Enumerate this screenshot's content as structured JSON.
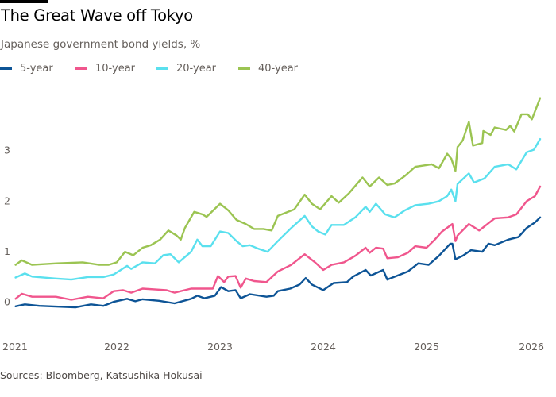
{
  "title": "The Great Wave off Tokyo",
  "subtitle": "Japanese government bond yields, %",
  "source": "Sources: Bloomberg, Katsushika Hokusai",
  "chart_data": {
    "type": "line",
    "title": "The Great Wave off Tokyo",
    "ylabel": "",
    "xlabel": "",
    "xlim": [
      2021,
      2026
    ],
    "ylim": [
      -0.8,
      4.4
    ],
    "grid": false,
    "legend": "top-left",
    "x_ticks": [
      "2021",
      "2022",
      "2023",
      "2024",
      "2025",
      "2026"
    ],
    "y_ticks": [
      "0",
      "1",
      "2",
      "3"
    ],
    "series": [
      {
        "name": "5-year",
        "color": "#0d5496",
        "points": [
          [
            2021.02,
            -0.09
          ],
          [
            2021.11,
            -0.05
          ],
          [
            2021.25,
            -0.08
          ],
          [
            2021.48,
            -0.1
          ],
          [
            2021.6,
            -0.11
          ],
          [
            2021.75,
            -0.05
          ],
          [
            2021.87,
            -0.08
          ],
          [
            2021.97,
            0.0
          ],
          [
            2022.1,
            0.06
          ],
          [
            2022.18,
            0.01
          ],
          [
            2022.25,
            0.05
          ],
          [
            2022.41,
            0.02
          ],
          [
            2022.56,
            -0.03
          ],
          [
            2022.72,
            0.06
          ],
          [
            2022.78,
            0.12
          ],
          [
            2022.85,
            0.07
          ],
          [
            2022.95,
            0.12
          ],
          [
            2023.01,
            0.29
          ],
          [
            2023.08,
            0.21
          ],
          [
            2023.15,
            0.23
          ],
          [
            2023.2,
            0.07
          ],
          [
            2023.29,
            0.15
          ],
          [
            2023.45,
            0.1
          ],
          [
            2023.52,
            0.12
          ],
          [
            2023.56,
            0.21
          ],
          [
            2023.68,
            0.26
          ],
          [
            2023.77,
            0.34
          ],
          [
            2023.83,
            0.47
          ],
          [
            2023.89,
            0.34
          ],
          [
            2024.0,
            0.23
          ],
          [
            2024.1,
            0.37
          ],
          [
            2024.23,
            0.39
          ],
          [
            2024.29,
            0.5
          ],
          [
            2024.41,
            0.63
          ],
          [
            2024.46,
            0.52
          ],
          [
            2024.58,
            0.63
          ],
          [
            2024.62,
            0.44
          ],
          [
            2024.72,
            0.52
          ],
          [
            2024.82,
            0.6
          ],
          [
            2024.92,
            0.76
          ],
          [
            2025.02,
            0.73
          ],
          [
            2025.12,
            0.91
          ],
          [
            2025.23,
            1.15
          ],
          [
            2025.25,
            1.15
          ],
          [
            2025.28,
            0.84
          ],
          [
            2025.35,
            0.91
          ],
          [
            2025.43,
            1.02
          ],
          [
            2025.54,
            0.99
          ],
          [
            2025.6,
            1.15
          ],
          [
            2025.66,
            1.12
          ],
          [
            2025.79,
            1.23
          ],
          [
            2025.89,
            1.28
          ],
          [
            2025.97,
            1.46
          ],
          [
            2026.05,
            1.57
          ],
          [
            2026.1,
            1.67
          ]
        ]
      },
      {
        "name": "10-year",
        "color": "#f0568d",
        "points": [
          [
            2021.02,
            0.06
          ],
          [
            2021.08,
            0.16
          ],
          [
            2021.18,
            0.1
          ],
          [
            2021.41,
            0.1
          ],
          [
            2021.56,
            0.04
          ],
          [
            2021.72,
            0.1
          ],
          [
            2021.87,
            0.07
          ],
          [
            2021.97,
            0.21
          ],
          [
            2022.06,
            0.23
          ],
          [
            2022.14,
            0.18
          ],
          [
            2022.25,
            0.26
          ],
          [
            2022.48,
            0.23
          ],
          [
            2022.56,
            0.18
          ],
          [
            2022.72,
            0.26
          ],
          [
            2022.93,
            0.26
          ],
          [
            2022.98,
            0.51
          ],
          [
            2023.04,
            0.39
          ],
          [
            2023.08,
            0.5
          ],
          [
            2023.15,
            0.51
          ],
          [
            2023.2,
            0.28
          ],
          [
            2023.25,
            0.46
          ],
          [
            2023.33,
            0.41
          ],
          [
            2023.45,
            0.39
          ],
          [
            2023.56,
            0.6
          ],
          [
            2023.69,
            0.73
          ],
          [
            2023.82,
            0.94
          ],
          [
            2023.92,
            0.78
          ],
          [
            2024.0,
            0.63
          ],
          [
            2024.08,
            0.73
          ],
          [
            2024.2,
            0.78
          ],
          [
            2024.31,
            0.91
          ],
          [
            2024.41,
            1.07
          ],
          [
            2024.45,
            0.97
          ],
          [
            2024.51,
            1.07
          ],
          [
            2024.58,
            1.05
          ],
          [
            2024.62,
            0.86
          ],
          [
            2024.72,
            0.88
          ],
          [
            2024.82,
            0.97
          ],
          [
            2024.89,
            1.1
          ],
          [
            2025.0,
            1.07
          ],
          [
            2025.08,
            1.23
          ],
          [
            2025.15,
            1.39
          ],
          [
            2025.25,
            1.54
          ],
          [
            2025.28,
            1.2
          ],
          [
            2025.3,
            1.31
          ],
          [
            2025.41,
            1.54
          ],
          [
            2025.51,
            1.41
          ],
          [
            2025.66,
            1.65
          ],
          [
            2025.79,
            1.67
          ],
          [
            2025.87,
            1.73
          ],
          [
            2025.97,
            1.99
          ],
          [
            2026.05,
            2.09
          ],
          [
            2026.1,
            2.28
          ]
        ]
      },
      {
        "name": "20-year",
        "color": "#5ae0ee",
        "points": [
          [
            2021.02,
            0.48
          ],
          [
            2021.11,
            0.56
          ],
          [
            2021.18,
            0.5
          ],
          [
            2021.41,
            0.46
          ],
          [
            2021.56,
            0.44
          ],
          [
            2021.72,
            0.49
          ],
          [
            2021.87,
            0.49
          ],
          [
            2021.97,
            0.54
          ],
          [
            2022.1,
            0.71
          ],
          [
            2022.14,
            0.65
          ],
          [
            2022.25,
            0.78
          ],
          [
            2022.37,
            0.76
          ],
          [
            2022.45,
            0.92
          ],
          [
            2022.52,
            0.94
          ],
          [
            2022.6,
            0.78
          ],
          [
            2022.72,
            0.99
          ],
          [
            2022.78,
            1.23
          ],
          [
            2022.83,
            1.1
          ],
          [
            2022.91,
            1.1
          ],
          [
            2023.0,
            1.39
          ],
          [
            2023.08,
            1.36
          ],
          [
            2023.16,
            1.2
          ],
          [
            2023.22,
            1.1
          ],
          [
            2023.29,
            1.12
          ],
          [
            2023.37,
            1.05
          ],
          [
            2023.46,
            0.99
          ],
          [
            2023.56,
            1.2
          ],
          [
            2023.69,
            1.46
          ],
          [
            2023.82,
            1.7
          ],
          [
            2023.89,
            1.49
          ],
          [
            2023.95,
            1.39
          ],
          [
            2024.02,
            1.33
          ],
          [
            2024.08,
            1.52
          ],
          [
            2024.2,
            1.52
          ],
          [
            2024.31,
            1.67
          ],
          [
            2024.41,
            1.88
          ],
          [
            2024.45,
            1.78
          ],
          [
            2024.51,
            1.94
          ],
          [
            2024.6,
            1.73
          ],
          [
            2024.69,
            1.67
          ],
          [
            2024.79,
            1.81
          ],
          [
            2024.89,
            1.91
          ],
          [
            2025.02,
            1.94
          ],
          [
            2025.12,
            1.99
          ],
          [
            2025.2,
            2.09
          ],
          [
            2025.24,
            2.22
          ],
          [
            2025.28,
            1.99
          ],
          [
            2025.3,
            2.33
          ],
          [
            2025.41,
            2.54
          ],
          [
            2025.46,
            2.36
          ],
          [
            2025.56,
            2.44
          ],
          [
            2025.66,
            2.67
          ],
          [
            2025.79,
            2.72
          ],
          [
            2025.87,
            2.62
          ],
          [
            2025.97,
            2.96
          ],
          [
            2026.04,
            3.01
          ],
          [
            2026.1,
            3.22
          ]
        ]
      },
      {
        "name": "40-year",
        "color": "#9bc452",
        "points": [
          [
            2021.02,
            0.73
          ],
          [
            2021.08,
            0.82
          ],
          [
            2021.18,
            0.73
          ],
          [
            2021.42,
            0.76
          ],
          [
            2021.67,
            0.78
          ],
          [
            2021.83,
            0.73
          ],
          [
            2021.92,
            0.73
          ],
          [
            2022.0,
            0.78
          ],
          [
            2022.08,
            0.99
          ],
          [
            2022.16,
            0.92
          ],
          [
            2022.25,
            1.07
          ],
          [
            2022.33,
            1.12
          ],
          [
            2022.42,
            1.23
          ],
          [
            2022.5,
            1.41
          ],
          [
            2022.58,
            1.31
          ],
          [
            2022.62,
            1.23
          ],
          [
            2022.66,
            1.46
          ],
          [
            2022.75,
            1.78
          ],
          [
            2022.83,
            1.73
          ],
          [
            2022.87,
            1.68
          ],
          [
            2023.0,
            1.94
          ],
          [
            2023.08,
            1.81
          ],
          [
            2023.16,
            1.62
          ],
          [
            2023.25,
            1.54
          ],
          [
            2023.33,
            1.44
          ],
          [
            2023.42,
            1.44
          ],
          [
            2023.5,
            1.41
          ],
          [
            2023.56,
            1.7
          ],
          [
            2023.72,
            1.83
          ],
          [
            2023.82,
            2.12
          ],
          [
            2023.89,
            1.94
          ],
          [
            2023.97,
            1.83
          ],
          [
            2024.08,
            2.09
          ],
          [
            2024.15,
            1.96
          ],
          [
            2024.25,
            2.15
          ],
          [
            2024.38,
            2.46
          ],
          [
            2024.45,
            2.28
          ],
          [
            2024.54,
            2.46
          ],
          [
            2024.62,
            2.31
          ],
          [
            2024.69,
            2.34
          ],
          [
            2024.79,
            2.49
          ],
          [
            2024.89,
            2.67
          ],
          [
            2025.05,
            2.72
          ],
          [
            2025.12,
            2.64
          ],
          [
            2025.2,
            2.93
          ],
          [
            2025.24,
            2.83
          ],
          [
            2025.28,
            2.59
          ],
          [
            2025.3,
            3.06
          ],
          [
            2025.35,
            3.19
          ],
          [
            2025.41,
            3.56
          ],
          [
            2025.45,
            3.09
          ],
          [
            2025.54,
            3.14
          ],
          [
            2025.55,
            3.38
          ],
          [
            2025.62,
            3.3
          ],
          [
            2025.66,
            3.45
          ],
          [
            2025.77,
            3.4
          ],
          [
            2025.81,
            3.48
          ],
          [
            2025.85,
            3.37
          ],
          [
            2025.92,
            3.71
          ],
          [
            2025.98,
            3.71
          ],
          [
            2026.02,
            3.61
          ],
          [
            2026.06,
            3.82
          ],
          [
            2026.1,
            4.03
          ]
        ]
      }
    ]
  }
}
